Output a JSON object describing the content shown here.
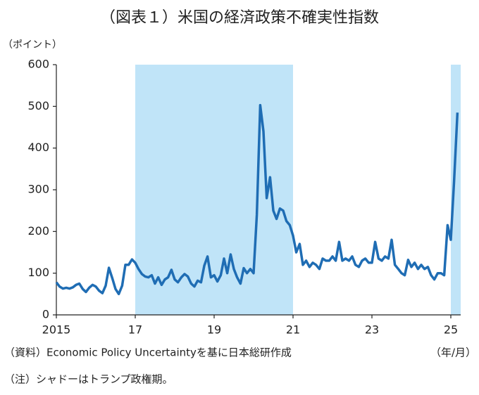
{
  "chart_data": {
    "type": "line",
    "title": "（図表１）米国の経済政策不確実性指数",
    "y_label": "（ポイント）",
    "x_label": "（年/月）",
    "source": "（資料）Economic Policy Uncertaintyを基に日本総研作成",
    "note": "（注）シャドーはトランプ政権期。",
    "xlim": [
      2015,
      2025.25
    ],
    "ylim": [
      0,
      600
    ],
    "xticks": [
      {
        "value": 2015,
        "label": "2015"
      },
      {
        "value": 2017,
        "label": "17"
      },
      {
        "value": 2019,
        "label": "19"
      },
      {
        "value": 2021,
        "label": "21"
      },
      {
        "value": 2023,
        "label": "23"
      },
      {
        "value": 2025,
        "label": "25"
      }
    ],
    "yticks": [
      0,
      100,
      200,
      300,
      400,
      500,
      600
    ],
    "grid": false,
    "shading": {
      "color": "#c0e4f8",
      "ranges": [
        [
          2017,
          2021
        ],
        [
          2025,
          2025.25
        ]
      ]
    },
    "x": [
      2015,
      2015.083,
      2015.167,
      2015.25,
      2015.333,
      2015.417,
      2015.5,
      2015.583,
      2015.667,
      2015.75,
      2015.833,
      2015.917,
      2016,
      2016.083,
      2016.167,
      2016.25,
      2016.333,
      2016.417,
      2016.5,
      2016.583,
      2016.667,
      2016.75,
      2016.833,
      2016.917,
      2017,
      2017.083,
      2017.167,
      2017.25,
      2017.333,
      2017.417,
      2017.5,
      2017.583,
      2017.667,
      2017.75,
      2017.833,
      2017.917,
      2018,
      2018.083,
      2018.167,
      2018.25,
      2018.333,
      2018.417,
      2018.5,
      2018.583,
      2018.667,
      2018.75,
      2018.833,
      2018.917,
      2019,
      2019.083,
      2019.167,
      2019.25,
      2019.333,
      2019.417,
      2019.5,
      2019.583,
      2019.667,
      2019.75,
      2019.833,
      2019.917,
      2020,
      2020.083,
      2020.167,
      2020.25,
      2020.333,
      2020.417,
      2020.5,
      2020.583,
      2020.667,
      2020.75,
      2020.833,
      2020.917,
      2021,
      2021.083,
      2021.167,
      2021.25,
      2021.333,
      2021.417,
      2021.5,
      2021.583,
      2021.667,
      2021.75,
      2021.833,
      2021.917,
      2022,
      2022.083,
      2022.167,
      2022.25,
      2022.333,
      2022.417,
      2022.5,
      2022.583,
      2022.667,
      2022.75,
      2022.833,
      2022.917,
      2023,
      2023.083,
      2023.167,
      2023.25,
      2023.333,
      2023.417,
      2023.5,
      2023.583,
      2023.667,
      2023.75,
      2023.833,
      2023.917,
      2024,
      2024.083,
      2024.167,
      2024.25,
      2024.333,
      2024.417,
      2024.5,
      2024.583,
      2024.667,
      2024.75,
      2024.833,
      2024.917,
      2025,
      2025.083,
      2025.167
    ],
    "series": [
      {
        "color": "#1f6db4",
        "values": [
          78,
          68,
          63,
          65,
          63,
          66,
          72,
          75,
          62,
          55,
          65,
          72,
          68,
          58,
          52,
          70,
          113,
          88,
          62,
          50,
          70,
          120,
          120,
          133,
          125,
          110,
          98,
          92,
          90,
          95,
          75,
          90,
          72,
          85,
          90,
          108,
          85,
          78,
          90,
          98,
          92,
          75,
          68,
          82,
          78,
          118,
          140,
          90,
          95,
          80,
          95,
          135,
          100,
          145,
          110,
          90,
          75,
          112,
          100,
          110,
          100,
          240,
          503,
          440,
          280,
          330,
          250,
          230,
          255,
          250,
          225,
          215,
          190,
          150,
          170,
          120,
          130,
          115,
          125,
          120,
          110,
          135,
          130,
          130,
          140,
          130,
          175,
          130,
          135,
          130,
          140,
          120,
          115,
          130,
          135,
          125,
          125,
          175,
          135,
          130,
          140,
          135,
          180,
          120,
          110,
          100,
          95,
          132,
          115,
          125,
          110,
          120,
          110,
          115,
          95,
          85,
          100,
          100,
          95,
          215,
          180,
          320,
          485
        ]
      }
    ]
  }
}
